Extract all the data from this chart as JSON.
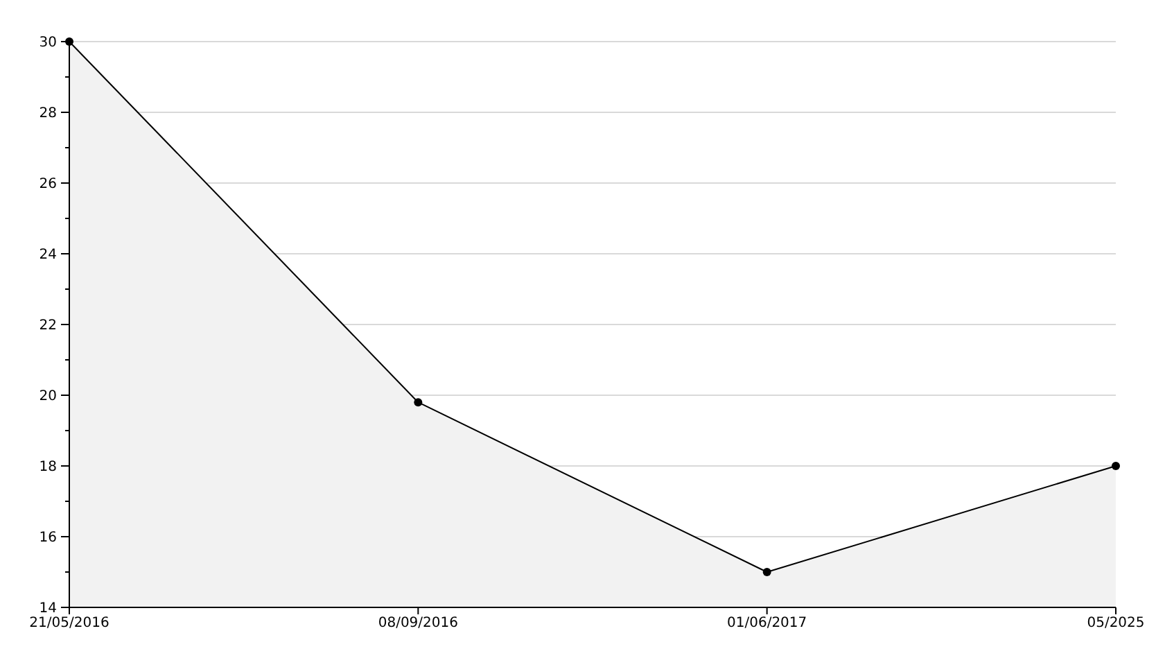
{
  "chart_data": {
    "type": "area",
    "categories": [
      "21/05/2016",
      "08/09/2016",
      "01/06/2017",
      "05/2025"
    ],
    "series": [
      {
        "color": "#000000",
        "values": [
          30,
          19.8,
          15,
          18
        ]
      }
    ],
    "ylim": [
      14,
      30
    ],
    "yticks": [
      14,
      {
        "value": 15,
        "label": null
      },
      16,
      {
        "value": 17,
        "label": null
      },
      18,
      {
        "value": 19,
        "label": null
      },
      20,
      {
        "value": 21,
        "label": null
      },
      22,
      {
        "value": 23,
        "label": null
      },
      24,
      {
        "value": 25,
        "label": null
      },
      26,
      {
        "value": 27,
        "label": null
      },
      28,
      {
        "value": 29,
        "label": null
      },
      30
    ],
    "grid": "y",
    "marker": "circle",
    "line_style": "solid"
  }
}
